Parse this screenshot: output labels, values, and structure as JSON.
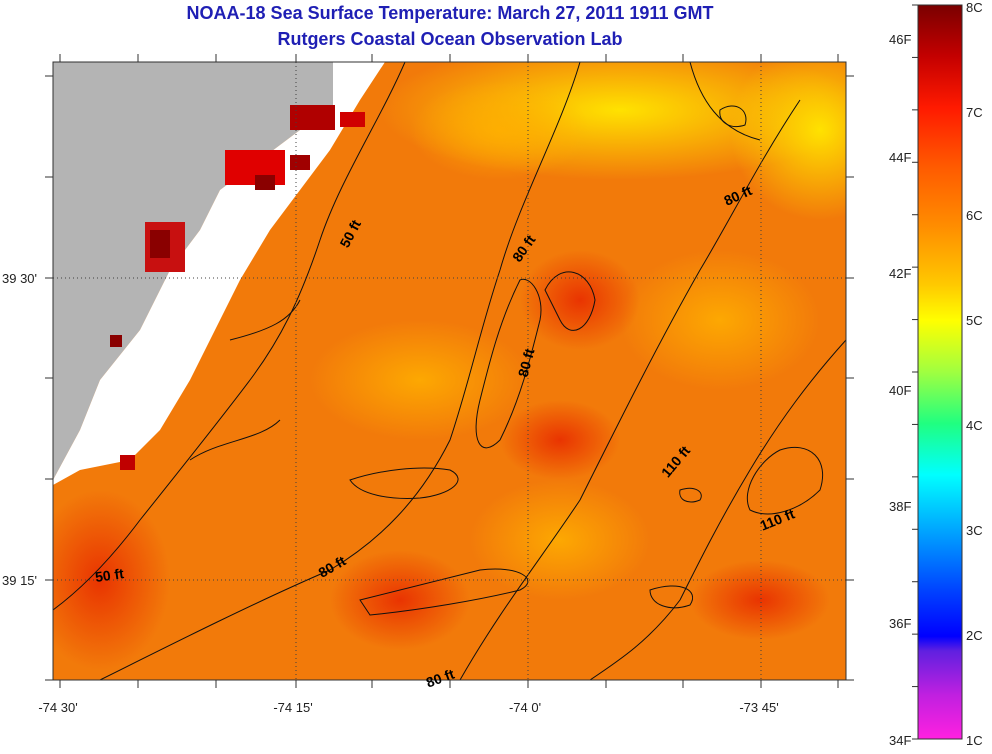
{
  "title": "NOAA-18 Sea Surface Temperature:  March 27, 2011 1911 GMT",
  "subtitle": "Rutgers Coastal Ocean Observation Lab",
  "axes": {
    "x_ticks": [
      {
        "label": "-74 30'",
        "lon": -74.5
      },
      {
        "label": "-74 15'",
        "lon": -74.25
      },
      {
        "label": "-74 0'",
        "lon": -74.0
      },
      {
        "label": "-73 45'",
        "lon": -73.75
      }
    ],
    "y_ticks": [
      {
        "label": "39 30'",
        "lat": 39.5
      },
      {
        "label": "39 15'",
        "lat": 39.25
      }
    ]
  },
  "contour_labels": [
    {
      "text": "50 ft"
    },
    {
      "text": "50 ft"
    },
    {
      "text": "80 ft"
    },
    {
      "text": "80 ft"
    },
    {
      "text": "80 ft"
    },
    {
      "text": "80 ft"
    },
    {
      "text": "80 ft"
    },
    {
      "text": "110 ft"
    },
    {
      "text": "110 ft"
    }
  ],
  "colorbar": {
    "fahrenheit": [
      "46F",
      "44F",
      "42F",
      "40F",
      "38F",
      "36F",
      "34F"
    ],
    "celsius": [
      "8C",
      "7C",
      "6C",
      "5C",
      "4C",
      "3C",
      "2C",
      "1C"
    ]
  },
  "colors": {
    "land": "#b4b4b4",
    "title": "#1f1fb4"
  }
}
